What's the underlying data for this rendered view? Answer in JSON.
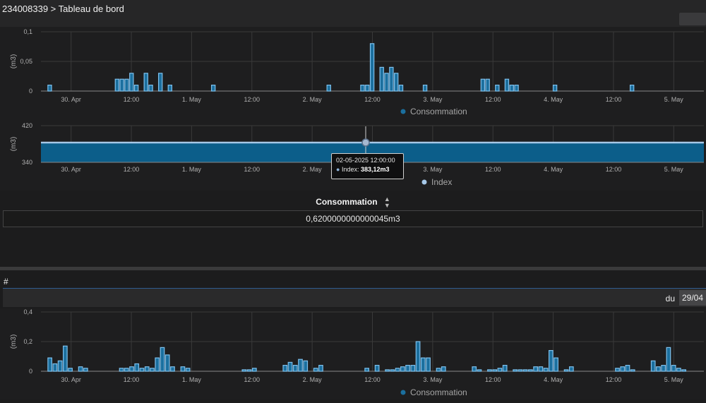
{
  "header": {
    "breadcrumb": "234008339 > Tableau de bord"
  },
  "colors": {
    "bar_fill": "#1b6f9e",
    "bar_stroke": "#7ec0ec",
    "area_fill": "#0c5e8a",
    "area_line": "#a6c8e8",
    "accent": "#2f5c8f"
  },
  "x_axis_labels": [
    "30. Apr",
    "12:00",
    "1. May",
    "12:00",
    "2. May",
    "12:00",
    "3. May",
    "12:00",
    "4. May",
    "12:00",
    "5. May"
  ],
  "chart_data": [
    {
      "type": "bar",
      "ylabel": "(m3)",
      "ylim": [
        0,
        0.1
      ],
      "yticks": [
        "0",
        "0,05",
        "0,1"
      ],
      "series": [
        {
          "name": "Consommation",
          "values": [
            0.01,
            0.0,
            0.0,
            0.0,
            0.0,
            0.0,
            0.0,
            0.0,
            0.0,
            0.0,
            0.0,
            0.0,
            0.0,
            0.0,
            0.02,
            0.02,
            0.02,
            0.03,
            0.01,
            0.0,
            0.03,
            0.01,
            0.0,
            0.03,
            0.0,
            0.01,
            0.0,
            0.0,
            0.0,
            0.0,
            0.0,
            0.0,
            0.0,
            0.0,
            0.01,
            0.0,
            0.0,
            0.0,
            0.0,
            0.0,
            0.0,
            0.0,
            0.0,
            0.0,
            0.0,
            0.0,
            0.0,
            0.0,
            0.0,
            0.0,
            0.0,
            0.0,
            0.0,
            0.0,
            0.0,
            0.0,
            0.0,
            0.0,
            0.01,
            0.0,
            0.0,
            0.0,
            0.0,
            0.0,
            0.0,
            0.01,
            0.01,
            0.08,
            0.0,
            0.04,
            0.03,
            0.04,
            0.03,
            0.01,
            0.0,
            0.0,
            0.0,
            0.0,
            0.01,
            0.0,
            0.0,
            0.0,
            0.0,
            0.0,
            0.0,
            0.0,
            0.0,
            0.0,
            0.0,
            0.0,
            0.02,
            0.02,
            0.0,
            0.01,
            0.0,
            0.02,
            0.01,
            0.01,
            0.0,
            0.0,
            0.0,
            0.0,
            0.0,
            0.0,
            0.0,
            0.01,
            0.0,
            0.0,
            0.0,
            0.0,
            0.0,
            0.0,
            0.0,
            0.0,
            0.0,
            0.0,
            0.0,
            0.0,
            0.0,
            0.0,
            0.0,
            0.01,
            0.0,
            0.0,
            0.0,
            0.0,
            0.0,
            0.0,
            0.0,
            0.0,
            0.0,
            0.0,
            0.0,
            0.0,
            0.0,
            0.0
          ]
        }
      ],
      "legend": "bottom-center",
      "grid": true
    },
    {
      "type": "area",
      "ylabel": "(m3)",
      "ylim": [
        340,
        420
      ],
      "yticks": [
        "340",
        "420"
      ],
      "series": [
        {
          "name": "Index",
          "value": 383.12
        }
      ],
      "legend": "bottom-center",
      "grid": true,
      "tooltip": {
        "date": "02-05-2025 12:00:00",
        "label": "Index: ",
        "value": "383,12m3"
      }
    },
    {
      "type": "bar",
      "ylabel": "(m3)",
      "ylim": [
        0,
        0.4
      ],
      "yticks": [
        "0",
        "0,2",
        "0,4"
      ],
      "series": [
        {
          "name": "Consommation",
          "values": [
            0.09,
            0.05,
            0.07,
            0.17,
            0.02,
            0.0,
            0.03,
            0.02,
            0.0,
            0.0,
            0.0,
            0.0,
            0.0,
            0.0,
            0.02,
            0.02,
            0.03,
            0.05,
            0.02,
            0.03,
            0.02,
            0.09,
            0.16,
            0.11,
            0.03,
            0.0,
            0.03,
            0.02,
            0.0,
            0.0,
            0.0,
            0.0,
            0.0,
            0.0,
            0.0,
            0.0,
            0.0,
            0.0,
            0.01,
            0.01,
            0.02,
            0.0,
            0.0,
            0.0,
            0.0,
            0.0,
            0.04,
            0.06,
            0.04,
            0.08,
            0.07,
            0.0,
            0.02,
            0.04,
            0.0,
            0.0,
            0.0,
            0.0,
            0.0,
            0.0,
            0.0,
            0.0,
            0.02,
            0.0,
            0.04,
            0.0,
            0.01,
            0.01,
            0.02,
            0.03,
            0.04,
            0.04,
            0.2,
            0.09,
            0.09,
            0.0,
            0.02,
            0.03,
            0.0,
            0.0,
            0.0,
            0.0,
            0.0,
            0.03,
            0.01,
            0.0,
            0.01,
            0.01,
            0.02,
            0.04,
            0.0,
            0.01,
            0.01,
            0.01,
            0.01,
            0.03,
            0.03,
            0.02,
            0.14,
            0.09,
            0.0,
            0.01,
            0.03,
            0.0,
            0.0,
            0.0,
            0.0,
            0.0,
            0.0,
            0.0,
            0.0,
            0.02,
            0.03,
            0.04,
            0.01,
            0.0,
            0.0,
            0.0,
            0.07,
            0.03,
            0.04,
            0.16,
            0.04,
            0.02,
            0.01,
            0.0,
            0.0,
            0.0
          ]
        }
      ],
      "legend": "bottom-center",
      "grid": true
    }
  ],
  "table": {
    "header": "Consommation",
    "sort_icon": "sort-icon",
    "value": "0,6200000000000045m3"
  },
  "section2": {
    "hash_label": "#",
    "du_label": "du",
    "date_value": "29/04"
  }
}
